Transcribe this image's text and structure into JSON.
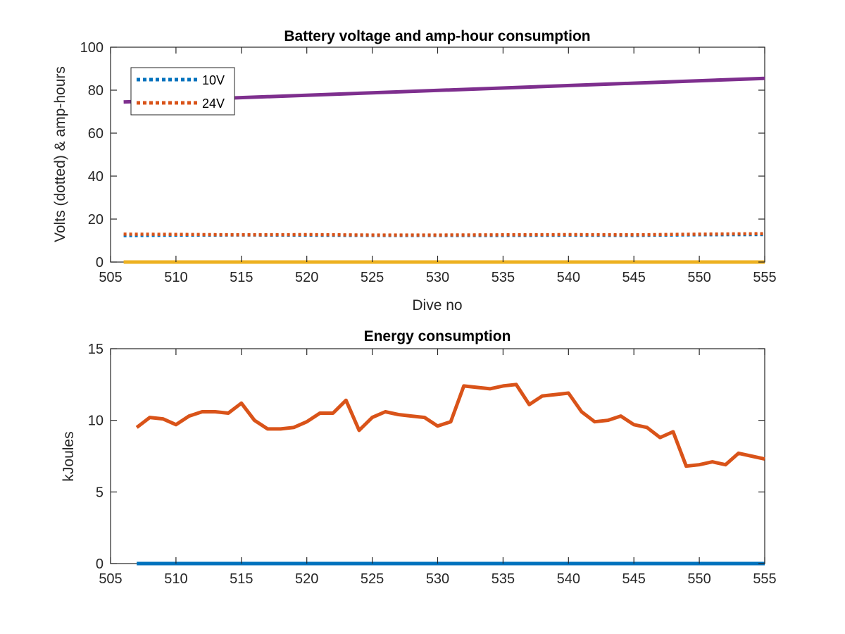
{
  "chart_data": [
    {
      "type": "line",
      "title": "Battery voltage and amp-hour consumption",
      "xlabel": "Dive no",
      "ylabel": "Volts (dotted) & amp-hours",
      "xlim": [
        505,
        555
      ],
      "ylim": [
        0,
        100
      ],
      "xticks": [
        505,
        510,
        515,
        520,
        525,
        530,
        535,
        540,
        545,
        550,
        555
      ],
      "yticks": [
        0,
        20,
        40,
        60,
        80,
        100
      ],
      "grid": false,
      "legend": "top-left",
      "series": [
        {
          "name": "10V",
          "style": "dotted",
          "color": "#0072BD",
          "x": [
            506,
            510,
            515,
            520,
            525,
            530,
            535,
            540,
            545,
            550,
            555
          ],
          "y": [
            12.3,
            12.5,
            12.6,
            12.5,
            12.4,
            12.4,
            12.4,
            12.5,
            12.4,
            12.7,
            12.8
          ]
        },
        {
          "name": "24V",
          "style": "dotted",
          "color": "#D95319",
          "x": [
            506,
            510,
            515,
            520,
            525,
            530,
            535,
            540,
            545,
            550,
            555
          ],
          "y": [
            13.0,
            12.9,
            12.7,
            12.8,
            12.6,
            12.6,
            12.7,
            12.8,
            12.7,
            13.0,
            13.2
          ]
        },
        {
          "style": "solid",
          "color": "#EDB120",
          "x": [
            506,
            555
          ],
          "y": [
            0,
            0
          ]
        },
        {
          "style": "solid",
          "color": "#7E2F8E",
          "x": [
            506,
            555
          ],
          "y": [
            74.5,
            85.5
          ]
        }
      ]
    },
    {
      "type": "line",
      "title": "Energy consumption",
      "xlabel": "",
      "ylabel": "kJoules",
      "xlim": [
        505,
        555
      ],
      "ylim": [
        0,
        15
      ],
      "xticks": [
        505,
        510,
        515,
        520,
        525,
        530,
        535,
        540,
        545,
        550,
        555
      ],
      "yticks": [
        0,
        5,
        10,
        15
      ],
      "grid": false,
      "series": [
        {
          "style": "solid",
          "color": "#D95319",
          "x": [
            507,
            508,
            509,
            510,
            511,
            512,
            513,
            514,
            515,
            516,
            517,
            518,
            519,
            520,
            521,
            522,
            523,
            524,
            525,
            526,
            527,
            528,
            529,
            530,
            531,
            532,
            533,
            534,
            535,
            536,
            537,
            538,
            539,
            540,
            541,
            542,
            543,
            544,
            545,
            546,
            547,
            548,
            549,
            550,
            551,
            552,
            553,
            554,
            555
          ],
          "y": [
            9.5,
            10.2,
            10.1,
            9.7,
            10.3,
            10.6,
            10.6,
            10.5,
            11.2,
            10.0,
            9.4,
            9.4,
            9.5,
            9.9,
            10.5,
            10.5,
            11.4,
            9.3,
            10.2,
            10.6,
            10.4,
            10.3,
            10.2,
            9.6,
            9.9,
            12.4,
            12.3,
            12.2,
            12.4,
            12.5,
            11.1,
            11.7,
            11.8,
            11.9,
            10.6,
            9.9,
            10.0,
            10.3,
            9.7,
            9.5,
            8.8,
            9.2,
            6.8,
            6.9,
            7.1,
            6.9,
            7.7,
            7.5,
            7.3
          ]
        },
        {
          "style": "solid",
          "color": "#0072BD",
          "x": [
            507,
            555
          ],
          "y": [
            0,
            0
          ]
        }
      ]
    }
  ]
}
